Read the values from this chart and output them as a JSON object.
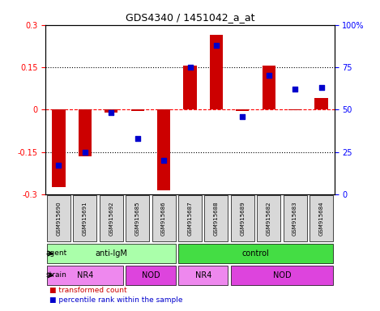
{
  "title": "GDS4340 / 1451042_a_at",
  "samples": [
    "GSM915690",
    "GSM915691",
    "GSM915692",
    "GSM915685",
    "GSM915686",
    "GSM915687",
    "GSM915688",
    "GSM915689",
    "GSM915682",
    "GSM915683",
    "GSM915684"
  ],
  "bar_values": [
    -0.275,
    -0.165,
    -0.01,
    -0.005,
    -0.285,
    0.155,
    0.265,
    -0.005,
    0.155,
    -0.002,
    0.04
  ],
  "dot_values": [
    17,
    25,
    48,
    33,
    20,
    75,
    88,
    46,
    70,
    62,
    63
  ],
  "ylim": [
    -0.3,
    0.3
  ],
  "y2lim": [
    0,
    100
  ],
  "yticks": [
    -0.3,
    -0.15,
    0,
    0.15,
    0.3
  ],
  "ytick_labels": [
    "-0.3",
    "-0.15",
    "0",
    "0.15",
    "0.3"
  ],
  "y2ticks": [
    0,
    25,
    50,
    75,
    100
  ],
  "y2tick_labels": [
    "0",
    "25",
    "50",
    "75",
    "100%"
  ],
  "hlines": [
    -0.15,
    0,
    0.15
  ],
  "bar_color": "#cc0000",
  "dot_color": "#0000cc",
  "bar_width": 0.5,
  "agent_labels": [
    {
      "label": "anti-IgM",
      "start": 0,
      "end": 5,
      "color": "#aaffaa"
    },
    {
      "label": "control",
      "start": 5,
      "end": 11,
      "color": "#44dd44"
    }
  ],
  "strain_labels": [
    {
      "label": "NR4",
      "start": 0,
      "end": 3,
      "color": "#ee88ee"
    },
    {
      "label": "NOD",
      "start": 3,
      "end": 5,
      "color": "#dd44dd"
    },
    {
      "label": "NR4",
      "start": 5,
      "end": 7,
      "color": "#ee88ee"
    },
    {
      "label": "NOD",
      "start": 7,
      "end": 11,
      "color": "#dd44dd"
    }
  ],
  "legend_items": [
    {
      "label": "transformed count",
      "color": "#cc0000"
    },
    {
      "label": "percentile rank within the sample",
      "color": "#0000cc"
    }
  ],
  "sample_box_color": "#d8d8d8"
}
